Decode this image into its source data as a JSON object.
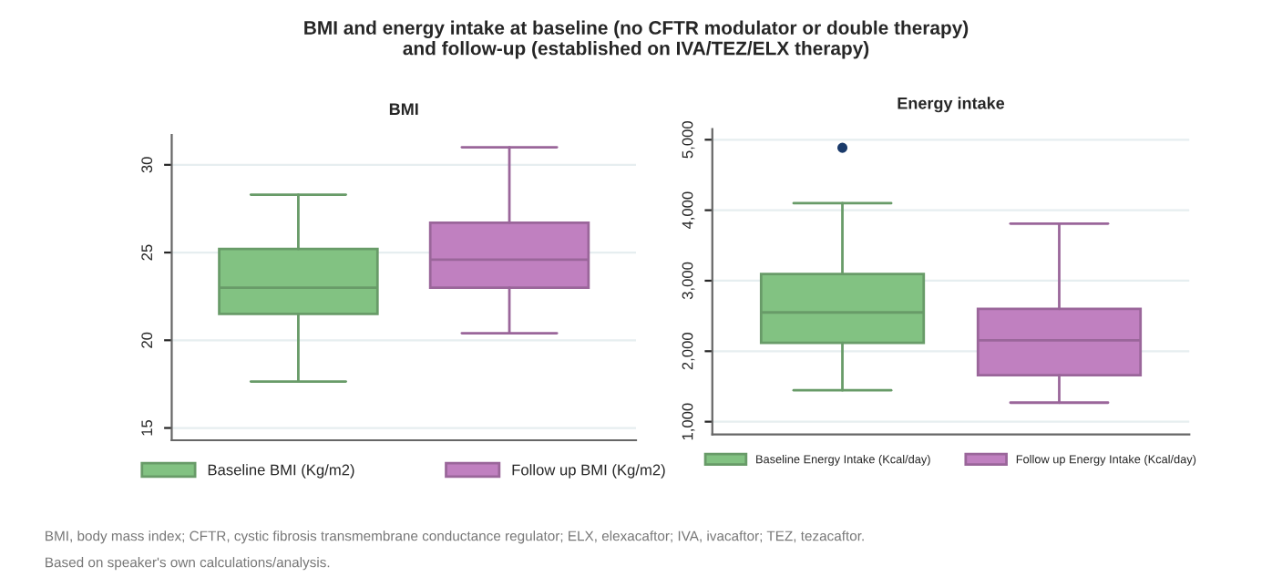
{
  "chart_data": [
    {
      "type": "box",
      "title": "BMI",
      "categories": [
        null,
        null
      ],
      "ylim": [
        14.3,
        31.7
      ],
      "yticks": [
        15,
        20,
        25,
        30
      ],
      "grid": "y",
      "legend": "bottom",
      "series": [
        {
          "name": "Baseline BMI (Kg/m2)",
          "color": "#82c282",
          "boxes": [
            {
              "low": 17.65,
              "q1": 21.5,
              "median": 23.0,
              "q3": 25.2,
              "high": 28.3
            },
            null
          ]
        },
        {
          "name": "Follow up BMI (Kg/m2)",
          "color": "#c080c0",
          "boxes": [
            null,
            {
              "low": 20.4,
              "q1": 23.0,
              "median": 24.6,
              "q3": 26.7,
              "high": 31.0
            }
          ]
        }
      ],
      "annotations": [
        "BMI and energy intake at baseline (no CFTR modulator or double therapy)\nand follow-up (established on IVA/TEZ/ELX therapy)",
        "BMI, body mass index; CFTR, cystic fibrosis transmembrane conductance regulator; ELX, elexacaftor; IVA, ivacaftor; TEZ, tezacaftor.",
        "Based on speaker's own calculations/analysis."
      ]
    },
    {
      "type": "box",
      "title": "Energy intake",
      "categories": [
        null,
        null
      ],
      "ylim": [
        820,
        5150
      ],
      "yticks": [
        {
          "value": 1000,
          "label": "1,000"
        },
        {
          "value": 2000,
          "label": "2,000"
        },
        {
          "value": 3000,
          "label": "3,000"
        },
        {
          "value": 4000,
          "label": "4,000"
        },
        {
          "value": 5000,
          "label": "5,000"
        }
      ],
      "grid": "y",
      "legend": "bottom",
      "series": [
        {
          "name": "Baseline Energy Intake (Kcal/day)",
          "color": "#82c282",
          "boxes": [
            {
              "low": 1445,
              "q1": 2120,
              "median": 2550,
              "q3": 3095,
              "high": 4100,
              "outliers": [
                4885
              ]
            },
            null
          ]
        },
        {
          "name": "Follow up Energy Intake (Kcal/day)",
          "color": "#c080c0",
          "boxes": [
            null,
            {
              "low": 1270,
              "q1": 1660,
              "median": 2155,
              "q3": 2600,
              "high": 3810
            }
          ]
        }
      ]
    }
  ]
}
